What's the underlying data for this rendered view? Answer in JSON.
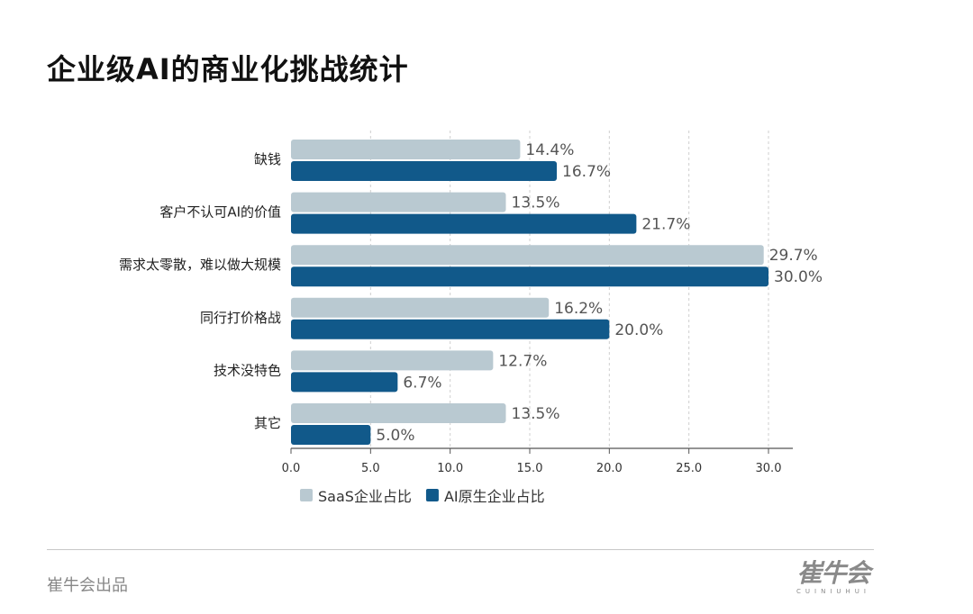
{
  "title": "企业级AI的商业化挑战统计",
  "footer": {
    "source": "崔牛会出品",
    "logo": "崔牛会",
    "logo_sub": "CUINIUHUI"
  },
  "chart_data": {
    "type": "bar",
    "orientation": "horizontal",
    "title": "企业级AI的商业化挑战统计",
    "categories": [
      "缺钱",
      "客户不认可AI的价值",
      "需求太零散，难以做大规模",
      "同行打价格战",
      "技术没特色",
      "其它"
    ],
    "series": [
      {
        "name": "SaaS企业占比",
        "color": "#b9c9d1",
        "values": [
          14.4,
          13.5,
          29.7,
          16.2,
          12.7,
          13.5
        ],
        "labels": [
          "14.4%",
          "13.5%",
          "29.7%",
          "16.2%",
          "12.7%",
          "13.5%"
        ]
      },
      {
        "name": "AI原生企业占比",
        "color": "#11598a",
        "values": [
          16.7,
          21.7,
          30.0,
          20.0,
          6.7,
          5.0
        ],
        "labels": [
          "16.7%",
          "21.7%",
          "30.0%",
          "20.0%",
          "6.7%",
          "5.0%"
        ]
      }
    ],
    "xlim": [
      0,
      31.5
    ],
    "xticks": [
      0,
      5,
      10,
      15,
      20,
      25,
      30
    ],
    "xtick_labels": [
      "0.0",
      "5.0",
      "10.0",
      "15.0",
      "20.0",
      "25.0",
      "30.0"
    ],
    "grid": "vertical dashed",
    "legend": "bottom-left"
  }
}
